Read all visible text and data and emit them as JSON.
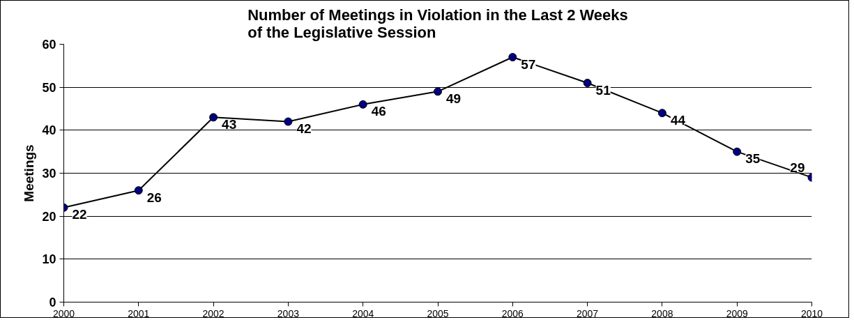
{
  "chart_data": {
    "type": "line",
    "title": "Number of Meetings in Violation in the Last 2 Weeks of the Legislative Session",
    "ylabel": "Meetings",
    "x": [
      2000,
      2001,
      2002,
      2003,
      2004,
      2005,
      2006,
      2007,
      2008,
      2009,
      2010
    ],
    "series": [
      {
        "color": "#000080",
        "values": [
          22,
          26,
          43,
          42,
          46,
          49,
          57,
          51,
          44,
          35,
          29
        ]
      }
    ],
    "xlim": [
      2000,
      2010
    ],
    "xticks": [
      2000,
      2001,
      2002,
      2003,
      2004,
      2005,
      2006,
      2007,
      2008,
      2009,
      2010
    ],
    "ylim": [
      0,
      60
    ],
    "yticks": [
      0,
      10,
      20,
      30,
      40,
      50,
      60
    ],
    "grid": "y",
    "marker": "circle",
    "line_style": "solid",
    "data_labels": true
  }
}
